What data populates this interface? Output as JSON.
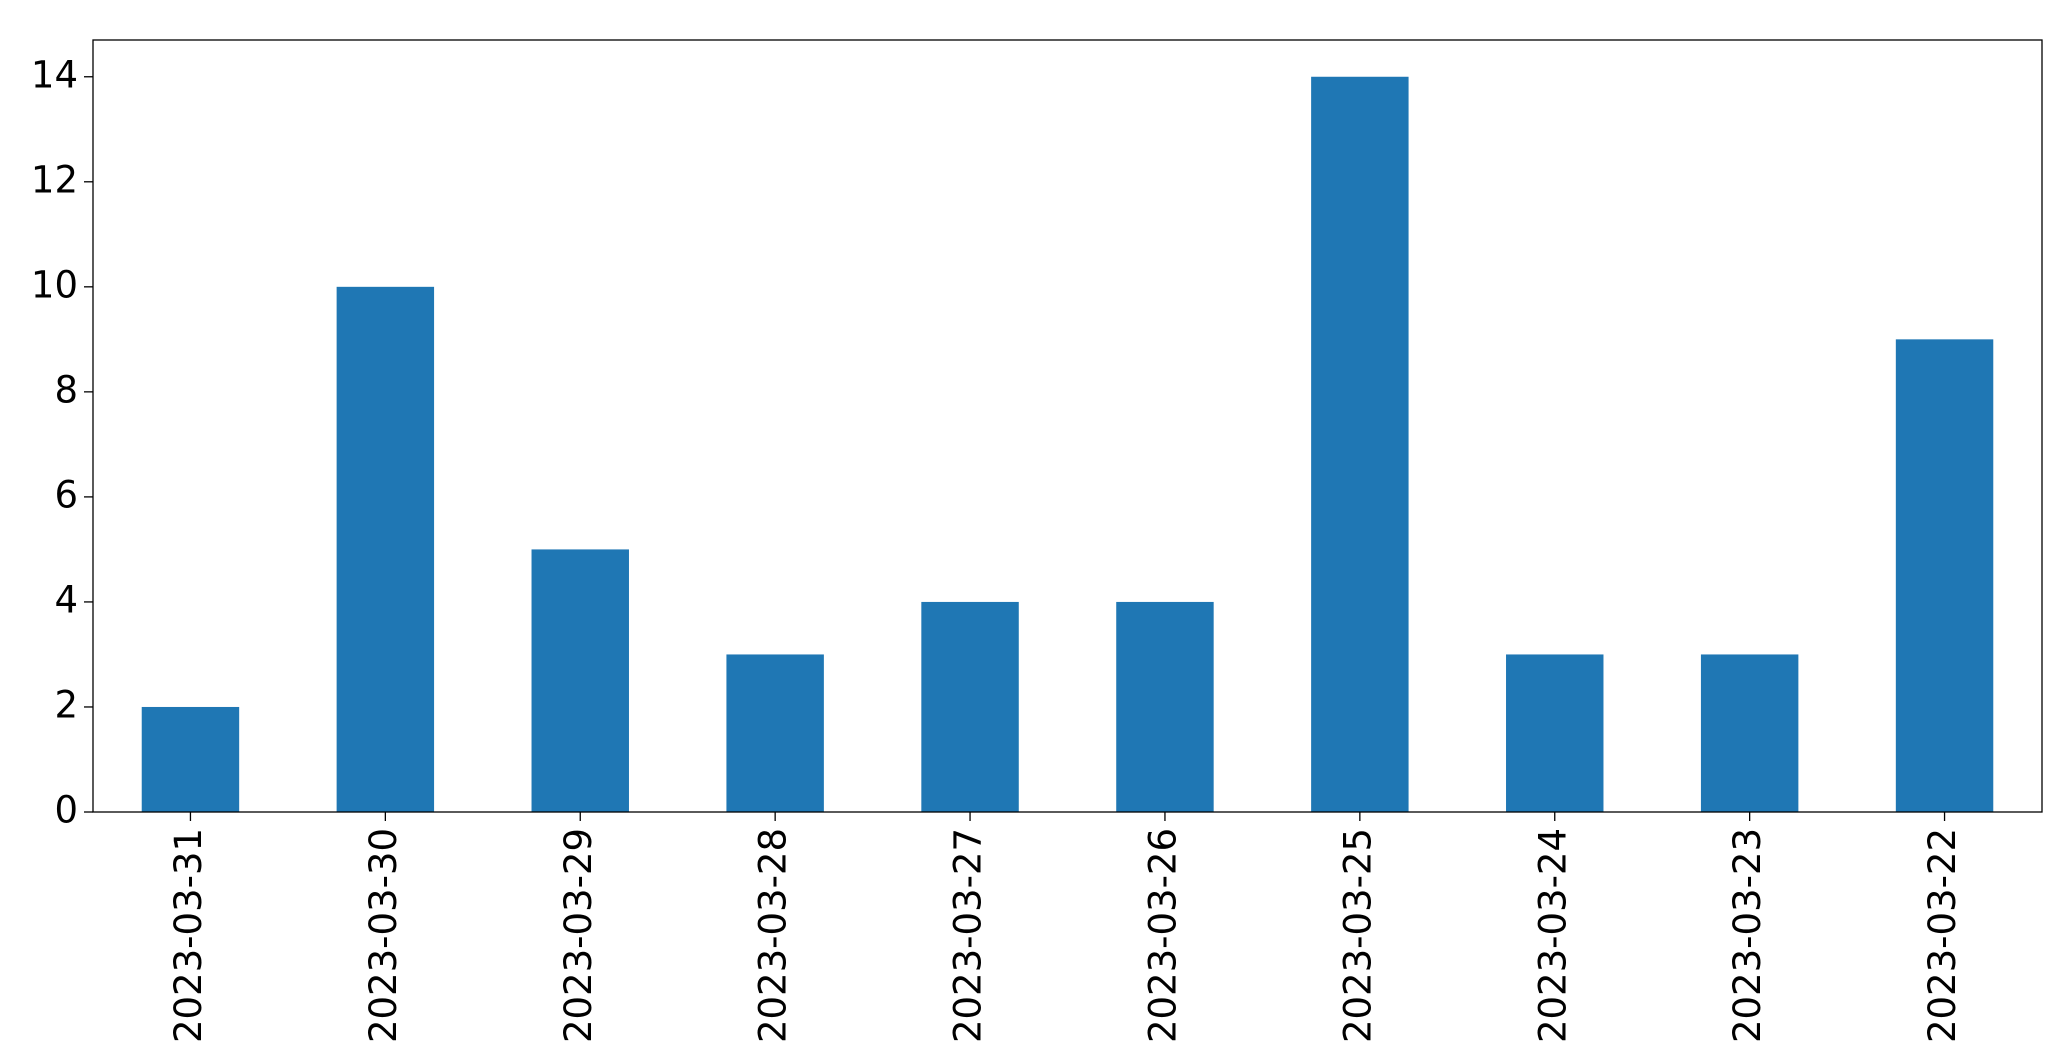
{
  "chart_data": {
    "type": "bar",
    "categories": [
      "2023-03-31",
      "2023-03-30",
      "2023-03-29",
      "2023-03-28",
      "2023-03-27",
      "2023-03-26",
      "2023-03-25",
      "2023-03-24",
      "2023-03-23",
      "2023-03-22"
    ],
    "values": [
      2,
      10,
      5,
      3,
      4,
      4,
      14,
      3,
      3,
      9
    ],
    "color": "#1f77b4",
    "ylim": [
      0,
      14.7
    ],
    "yticks": [
      0,
      2,
      4,
      6,
      8,
      10,
      12,
      14
    ],
    "grid": false
  }
}
